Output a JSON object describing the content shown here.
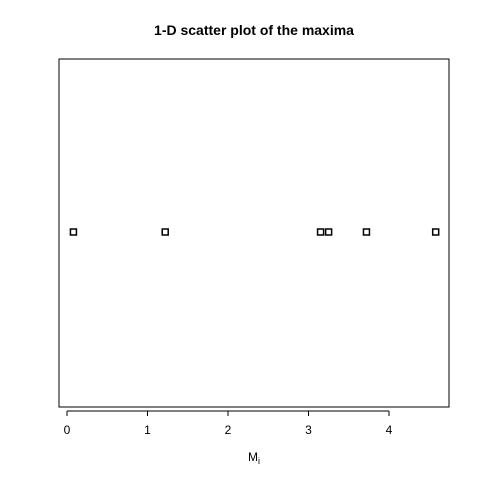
{
  "chart_data": {
    "type": "scatter",
    "title": "1-D scatter plot of the maxima",
    "xlabel": "M",
    "xlabel_subscript": "i",
    "ylabel": "",
    "xlim": [
      -0.1,
      4.7
    ],
    "x_ticks": [
      0,
      1,
      2,
      3,
      4
    ],
    "x_tick_labels": [
      "0",
      "1",
      "2",
      "3",
      "4"
    ],
    "x": [
      0.08,
      1.22,
      3.15,
      3.25,
      3.72,
      4.58
    ],
    "y": [
      0,
      0,
      0,
      0,
      0,
      0
    ],
    "marker": "open-square",
    "grid": false,
    "legend": "none",
    "colors": {
      "axis": "#000000",
      "marker": "#000000",
      "background": "#ffffff"
    }
  }
}
